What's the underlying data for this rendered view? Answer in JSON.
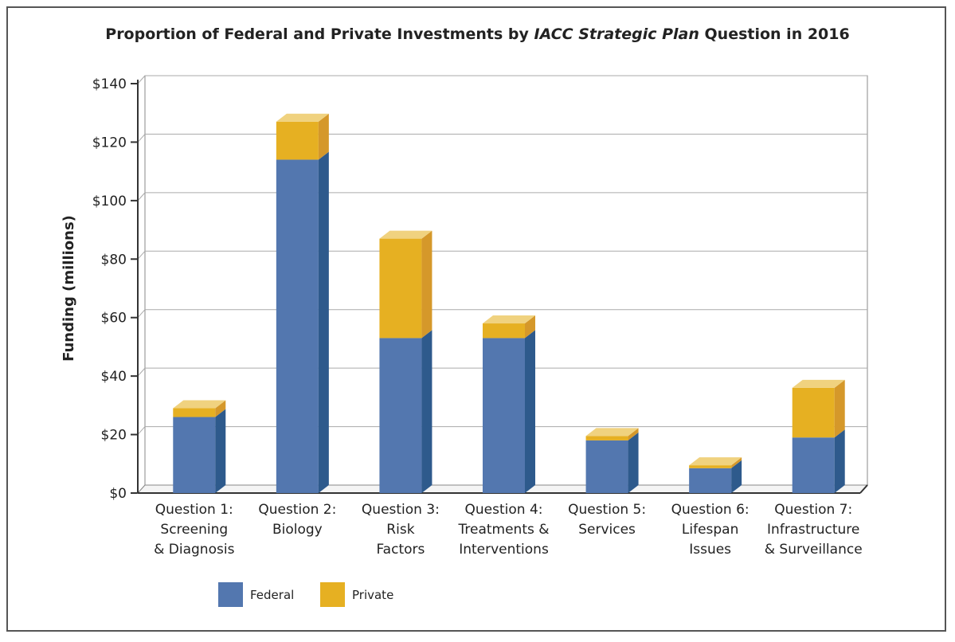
{
  "chart_data": {
    "type": "bar",
    "stacked": true,
    "title_parts": [
      {
        "text": "Proportion of Federal and Private Investments by ",
        "italic": false
      },
      {
        "text": "IACC Strategic Plan",
        "italic": true
      },
      {
        "text": " Question in 2016",
        "italic": false
      }
    ],
    "ylabel": "Funding (millions)",
    "ylim": [
      0,
      140
    ],
    "yticks": [
      "$0",
      "$20",
      "$40",
      "$60",
      "$80",
      "$100",
      "$120",
      "$140"
    ],
    "grid": true,
    "legend_position": "bottom-left",
    "categories": [
      [
        "Question 1:",
        "Screening",
        "& Diagnosis"
      ],
      [
        "Question 2:",
        "Biology"
      ],
      [
        "Question 3:",
        "Risk",
        "Factors"
      ],
      [
        "Question 4:",
        "Treatments &",
        "Interventions"
      ],
      [
        "Question 5:",
        "Services"
      ],
      [
        "Question 6:",
        "Lifespan",
        "Issues"
      ],
      [
        "Question 7:",
        "Infrastructure",
        "& Surveillance"
      ]
    ],
    "series": [
      {
        "name": "Federal",
        "color": "#5377af",
        "side": "#2e5a8c",
        "top": "#7a9acb",
        "values": [
          26,
          114,
          53,
          53,
          18,
          8.5,
          19
        ]
      },
      {
        "name": "Private",
        "color": "#e6b022",
        "side": "#d5982a",
        "top": "#f0d27f",
        "values": [
          3,
          13,
          34,
          5,
          1.5,
          1,
          17
        ]
      }
    ]
  }
}
